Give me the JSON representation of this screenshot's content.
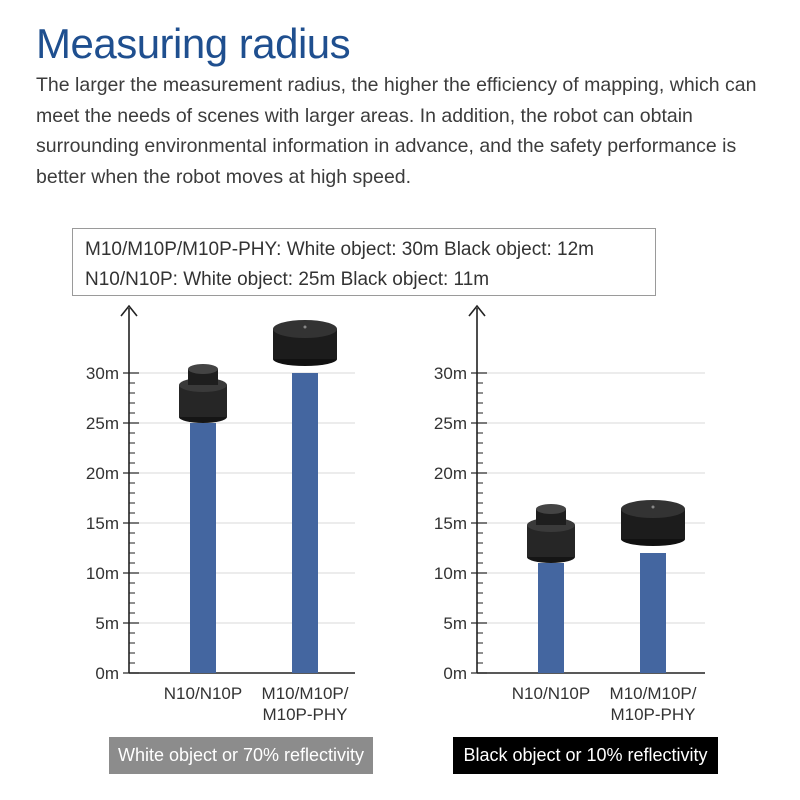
{
  "header": {
    "title": "Measuring radius",
    "description": "The larger the measurement radius, the higher the efficiency of mapping, which can meet the needs of scenes with larger areas. In addition, the robot can obtain surrounding environmental information in advance, and the safety performance is better when the robot moves at high speed."
  },
  "specs": {
    "line1": "M10/M10P/M10P-PHY: White object: 30m Black object: 12m",
    "line2": "N10/N10P: White object: 25m Black object: 11m"
  },
  "colors": {
    "bar": "#4466a0",
    "axis": "#222222",
    "gridline": "#d8d8d8"
  },
  "chart_data": [
    {
      "type": "bar",
      "title": "White object or 70% reflectivity",
      "categories": [
        "N10/N10P",
        "M10/M10P/\nM10P-PHY"
      ],
      "values": [
        25,
        30
      ],
      "unit": "m",
      "ylim": [
        0,
        35
      ],
      "yticks": [
        0,
        5,
        10,
        15,
        20,
        25,
        30
      ],
      "ytick_labels": [
        "0m",
        "5m",
        "10m",
        "15m",
        "20m",
        "25m",
        "30m"
      ]
    },
    {
      "type": "bar",
      "title": "Black object or 10% reflectivity",
      "categories": [
        "N10/N10P",
        "M10/M10P/\nM10P-PHY"
      ],
      "values": [
        11,
        12
      ],
      "unit": "m",
      "ylim": [
        0,
        35
      ],
      "yticks": [
        0,
        5,
        10,
        15,
        20,
        25,
        30
      ],
      "ytick_labels": [
        "0m",
        "5m",
        "10m",
        "15m",
        "20m",
        "25m",
        "30m"
      ]
    }
  ]
}
